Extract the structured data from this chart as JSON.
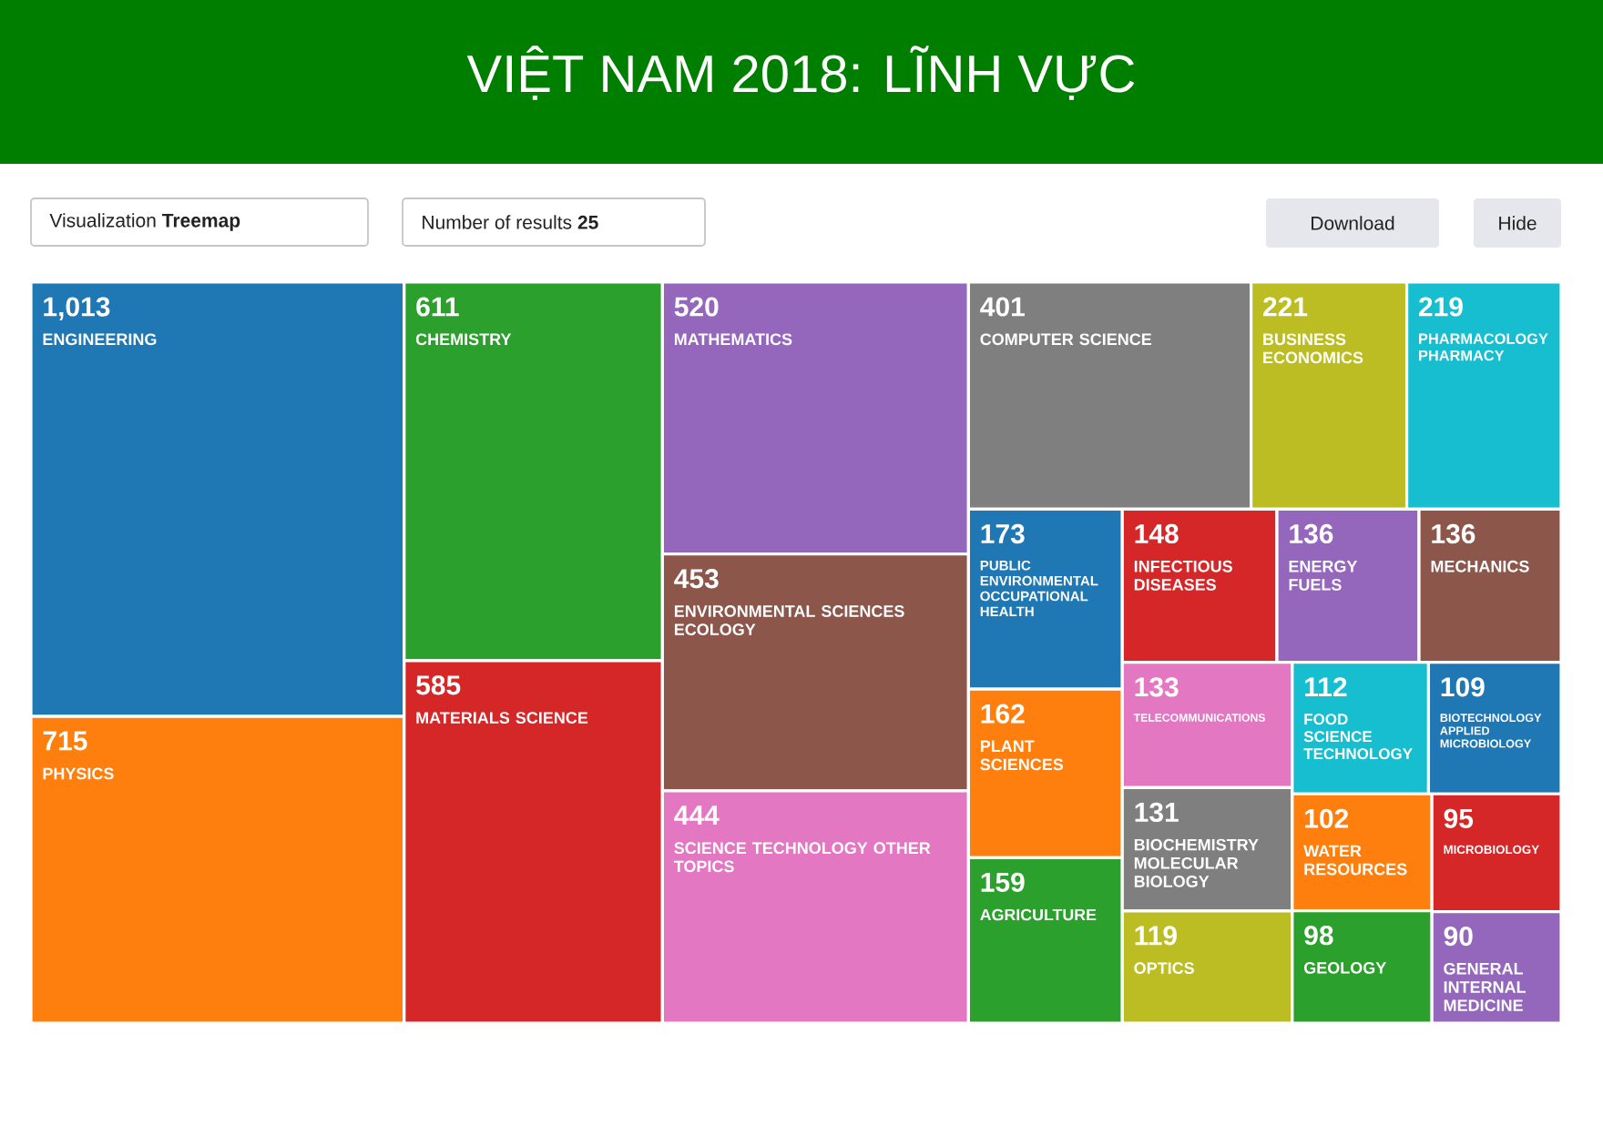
{
  "chart_data": {
    "type": "other",
    "title": "VIỆT NAM 2018: LĨNH VỰC",
    "categories": [
      "ENGINEERING",
      "PHYSICS",
      "CHEMISTRY",
      "MATERIALS SCIENCE",
      "MATHEMATICS",
      "ENVIRONMENTAL SCIENCES ECOLOGY",
      "SCIENCE TECHNOLOGY OTHER TOPICS",
      "COMPUTER SCIENCE",
      "BUSINESS ECONOMICS",
      "PHARMACOLOGY PHARMACY",
      "PUBLIC ENVIRONMENTAL OCCUPATIONAL HEALTH",
      "PLANT SCIENCES",
      "AGRICULTURE",
      "INFECTIOUS DISEASES",
      "ENERGY FUELS",
      "MECHANICS",
      "TELECOMMUNICATIONS",
      "BIOCHEMISTRY MOLECULAR BIOLOGY",
      "OPTICS",
      "FOOD SCIENCE TECHNOLOGY",
      "BIOTECHNOLOGY APPLIED MICROBIOLOGY",
      "WATER RESOURCES",
      "GEOLOGY",
      "MICROBIOLOGY",
      "GENERAL INTERNAL MEDICINE"
    ],
    "values": [
      1013,
      715,
      611,
      585,
      520,
      453,
      444,
      401,
      221,
      219,
      173,
      162,
      159,
      148,
      136,
      136,
      133,
      131,
      119,
      112,
      109,
      102,
      98,
      95,
      90
    ],
    "value_labels": [
      "1,013",
      "715",
      "611",
      "585",
      "520",
      "453",
      "444",
      "401",
      "221",
      "219",
      "173",
      "162",
      "159",
      "148",
      "136",
      "136",
      "133",
      "131",
      "119",
      "112",
      "109",
      "102",
      "98",
      "95",
      "90"
    ],
    "colors": [
      "#1f77b4",
      "#ff7f0e",
      "#2ca02c",
      "#d62728",
      "#9467bd",
      "#8c564b",
      "#e377c2",
      "#7f7f7f",
      "#bcbd22",
      "#17becf",
      "#1f77b4",
      "#ff7f0e",
      "#2ca02c",
      "#d62728",
      "#9467bd",
      "#8c564b",
      "#e377c2",
      "#7f7f7f",
      "#bcbd22",
      "#17becf",
      "#1f77b4",
      "#ff7f0e",
      "#2ca02c",
      "#d62728",
      "#9467bd"
    ],
    "annotations": [
      "Visualization **Treemap**",
      "Number of results **25**",
      "Download",
      "Hide"
    ]
  }
}
